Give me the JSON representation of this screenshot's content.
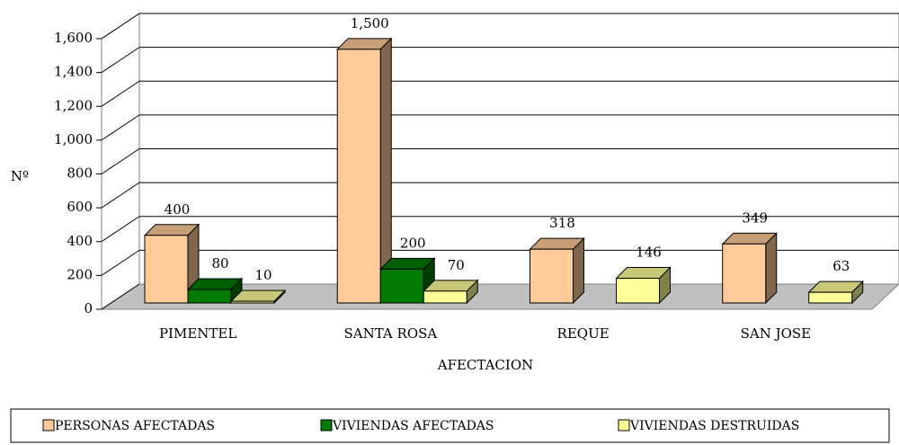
{
  "chart_data": {
    "type": "bar3d",
    "categories": [
      "PIMENTEL",
      "SANTA ROSA",
      "REQUE",
      "SAN JOSE"
    ],
    "series": [
      {
        "name": "PERSONAS AFECTADAS",
        "color": "#FFCC99",
        "values": [
          400,
          1500,
          318,
          349
        ],
        "value_labels": [
          "400",
          "1,500",
          "318",
          "349"
        ]
      },
      {
        "name": "VIVIENDAS AFECTADAS",
        "color": "#007A00",
        "values": [
          80,
          200,
          null,
          null
        ]
      },
      {
        "name": "VIVIENDAS DESTRUIDAS",
        "color": "#FFFF99",
        "values": [
          10,
          70,
          146,
          63
        ]
      }
    ],
    "y_label": "Nº",
    "x_label": "AFECTACION",
    "ylim": [
      0,
      1600
    ],
    "yticks": [
      0,
      200,
      400,
      600,
      800,
      {
        "value": 1000,
        "label": "1,000"
      },
      {
        "value": 1200,
        "label": "1,200"
      },
      {
        "value": 1400,
        "label": "1,400"
      },
      {
        "value": 1600,
        "label": "1,600"
      }
    ],
    "grid": true,
    "legend": "bottom"
  }
}
